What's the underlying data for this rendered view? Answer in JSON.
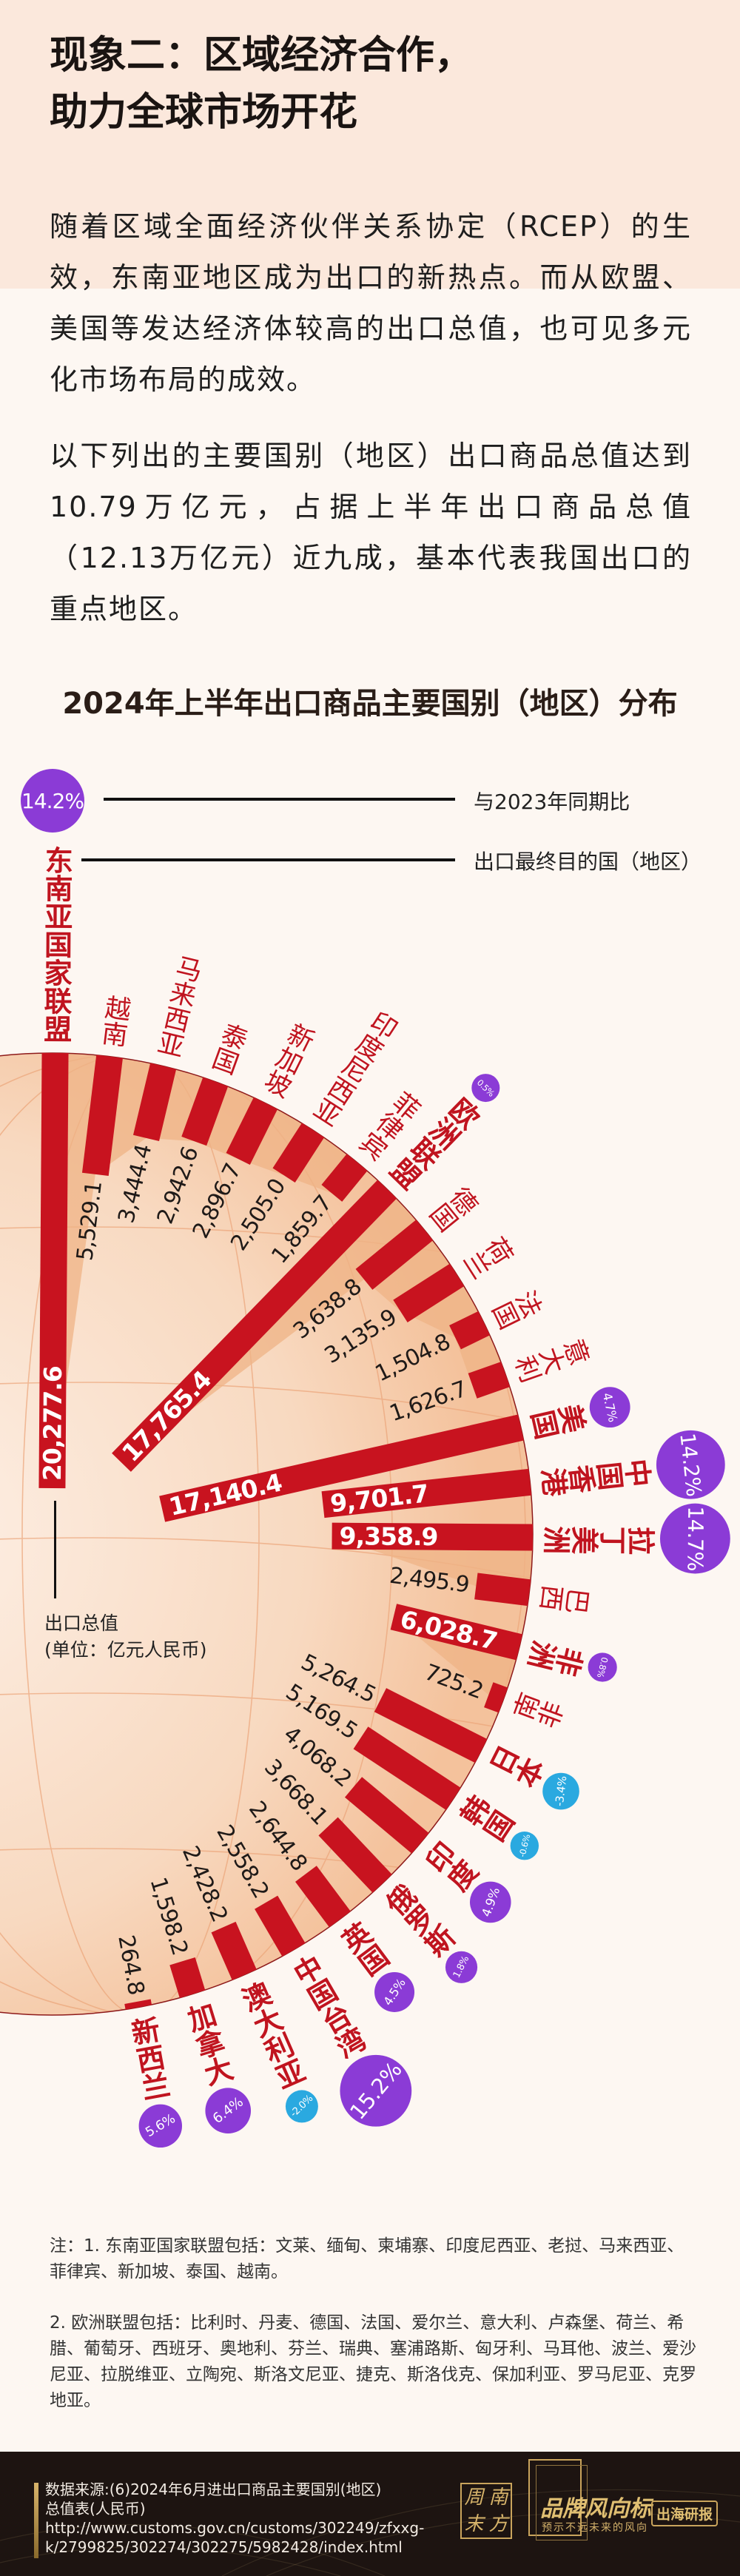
{
  "header": {
    "title_line1": "现象二：区域经济合作，",
    "title_line2": "助力全球市场开花"
  },
  "body": {
    "paragraph1": "随着区域全面经济伙伴关系协定（RCEP）的生效，东南亚地区成为出口的新热点。而从欧盟、美国等发达经济体较高的出口总值，也可见多元化市场布局的成效。",
    "paragraph2": "以下列出的主要国别（地区）出口商品总值达到10.79万亿元，占据上半年出口商品总值（12.13万亿元）近九成，基本代表我国出口的重点地区。"
  },
  "chart_data": {
    "type": "bar",
    "layout": "radial",
    "title": "2024年上半年出口商品主要国别（地区）分布",
    "legend": {
      "growth_label": "与2023年同期比",
      "destination_label": "出口最终目的国（地区）"
    },
    "unit_label_line1": "出口总值",
    "unit_label_line2": "(单位：亿元人民币)",
    "value_unit": "亿元人民币",
    "items": [
      {
        "name": "东南亚国家联盟",
        "value": 20277.6,
        "growth": 14.2,
        "level": "main"
      },
      {
        "name": "越南",
        "value": 5529.1,
        "level": "sub"
      },
      {
        "name": "马来西亚",
        "value": 3444.4,
        "level": "sub"
      },
      {
        "name": "泰国",
        "value": 2942.6,
        "level": "sub"
      },
      {
        "name": "新加坡",
        "value": 2896.7,
        "level": "sub"
      },
      {
        "name": "印度尼西亚",
        "value": 2505.0,
        "level": "sub"
      },
      {
        "name": "菲律宾",
        "value": 1859.7,
        "level": "sub"
      },
      {
        "name": "欧洲联盟",
        "value": 17765.4,
        "growth": 0.5,
        "level": "main"
      },
      {
        "name": "德国",
        "value": 3638.8,
        "level": "sub"
      },
      {
        "name": "荷兰",
        "value": 3135.9,
        "level": "sub"
      },
      {
        "name": "法国",
        "value": 1504.8,
        "level": "sub"
      },
      {
        "name": "意大利",
        "value": 1626.7,
        "level": "sub"
      },
      {
        "name": "美国",
        "value": 17140.4,
        "growth": 4.7,
        "level": "main"
      },
      {
        "name": "中国香港",
        "value": 9701.7,
        "growth": 14.2,
        "level": "main"
      },
      {
        "name": "拉丁美洲",
        "value": 9358.9,
        "growth": 14.7,
        "level": "main"
      },
      {
        "name": "巴西",
        "value": 2495.9,
        "level": "sub"
      },
      {
        "name": "非洲",
        "value": 6028.7,
        "growth": 0.8,
        "level": "main"
      },
      {
        "name": "南非",
        "value": 725.2,
        "level": "sub"
      },
      {
        "name": "日本",
        "value": 5264.5,
        "growth": -3.4,
        "level": "main"
      },
      {
        "name": "韩国",
        "value": 5169.5,
        "growth": -0.6,
        "level": "main"
      },
      {
        "name": "印度",
        "value": 4068.2,
        "growth": 4.9,
        "level": "main"
      },
      {
        "name": "俄罗斯",
        "value": 3668.1,
        "growth": 1.8,
        "level": "main"
      },
      {
        "name": "英国",
        "value": 2644.8,
        "growth": 4.5,
        "level": "main"
      },
      {
        "name": "中国台湾",
        "value": 2558.2,
        "growth": 15.2,
        "level": "main"
      },
      {
        "name": "澳大利亚",
        "value": 2428.2,
        "growth": -2.0,
        "level": "main"
      },
      {
        "name": "加拿大",
        "value": 1598.2,
        "growth": 6.4,
        "level": "main"
      },
      {
        "name": "新西兰",
        "value": 264.8,
        "growth": 5.6,
        "level": "main"
      }
    ],
    "colors": {
      "bar": "#c8131f",
      "label": "#c0141f",
      "growth_positive": "#8b3bd6",
      "growth_negative": "#2aa9e0",
      "globe": "#f4c29c"
    }
  },
  "notes": {
    "note1": "注：1. 东南亚国家联盟包括：文莱、缅甸、柬埔寨、印度尼西亚、老挝、马来西亚、菲律宾、新加坡、泰国、越南。",
    "note2": "2. 欧洲联盟包括：比利时、丹麦、德国、法国、爱尔兰、意大利、卢森堡、荷兰、希腊、葡萄牙、西班牙、奥地利、芬兰、瑞典、塞浦路斯、匈牙利、马耳他、波兰、爱沙尼亚、拉脱维亚、立陶宛、斯洛文尼亚、捷克、斯洛伐克、保加利亚、罗马尼亚、克罗地亚。"
  },
  "footer": {
    "source_line1": "数据来源:(6)2024年6月进出口商品主要国别(地区)",
    "source_line2": "总值表(人民币)",
    "source_url_line1": "http://www.customs.gov.cn/customs/302249/zfxxg-",
    "source_url_line2": "k/2799825/302274/302275/5982428/index.html",
    "logo_chars": [
      "周",
      "南",
      "末",
      "方"
    ],
    "brand_name": "品牌风向标",
    "brand_slogan": "预示不远未来的风向",
    "report_tag": "出海研报"
  }
}
